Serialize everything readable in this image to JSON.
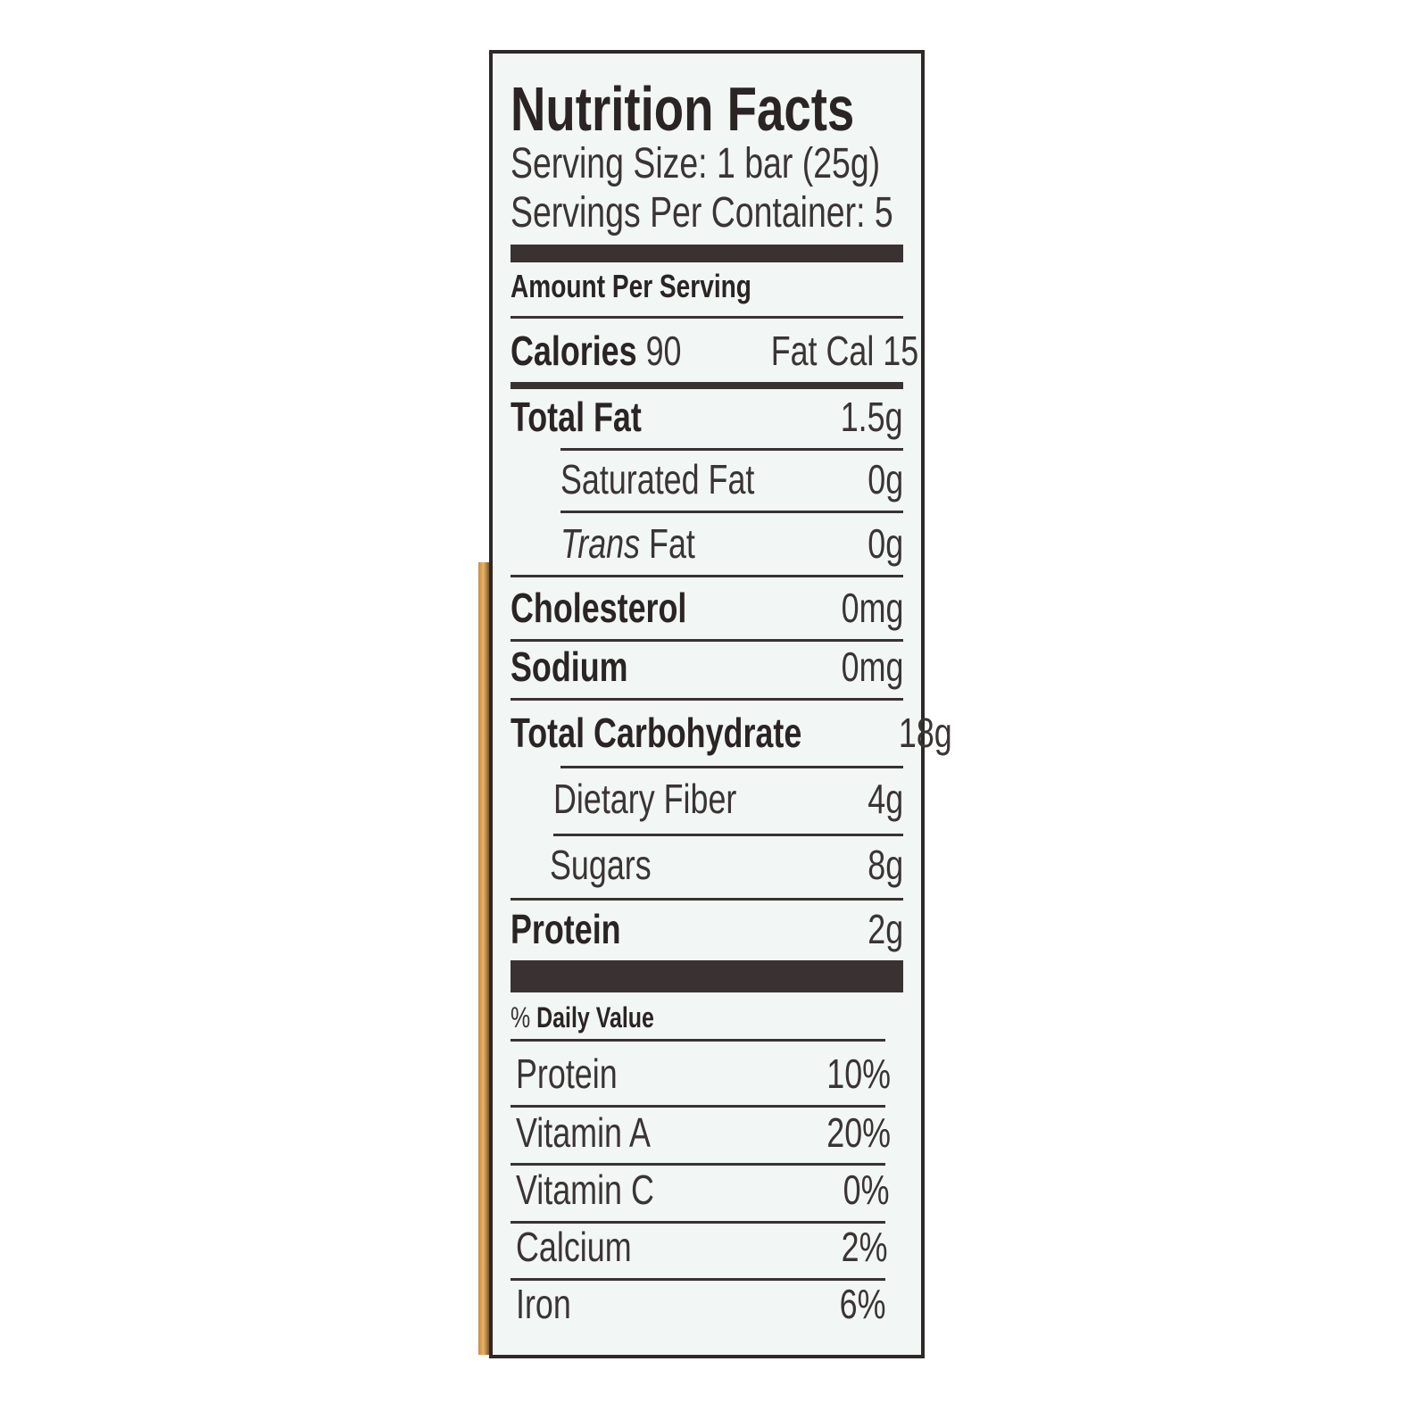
{
  "label": {
    "title": "Nutrition Facts",
    "serving_size": "Serving Size: 1 bar (25g)",
    "servings_per_container": "Servings Per Container: 5",
    "amount_per_serving": "Amount Per Serving",
    "calories": {
      "label": "Calories",
      "value": "90",
      "fat_cal_label": "Fat Cal",
      "fat_cal_value": "15"
    },
    "nutrients": [
      {
        "label": "Total Fat",
        "value": "1.5g"
      },
      {
        "label": "Saturated Fat",
        "value": "0g"
      },
      {
        "label_italic": "Trans",
        "label": " Fat",
        "value": "0g"
      },
      {
        "label": "Cholesterol",
        "value": "0mg"
      },
      {
        "label": "Sodium",
        "value": "0mg"
      },
      {
        "label": "Total Carbohydrate",
        "value": "18g"
      },
      {
        "label": "Dietary Fiber",
        "value": "4g"
      },
      {
        "label": "Sugars",
        "value": "8g"
      },
      {
        "label": "Protein",
        "value": "2g"
      }
    ],
    "daily_value_header_symbol": "%",
    "daily_value_header": " Daily Value",
    "daily_values": [
      {
        "label": "Protein",
        "value": "10%"
      },
      {
        "label": "Vitamin A",
        "value": "20%"
      },
      {
        "label": "Vitamin C",
        "value": "0%"
      },
      {
        "label": "Calcium",
        "value": "2%"
      },
      {
        "label": "Iron",
        "value": "6%"
      }
    ]
  },
  "colors": {
    "ink": "#2a2424",
    "panel": "#f2f6f5",
    "package_edge": "#c98a3a"
  }
}
